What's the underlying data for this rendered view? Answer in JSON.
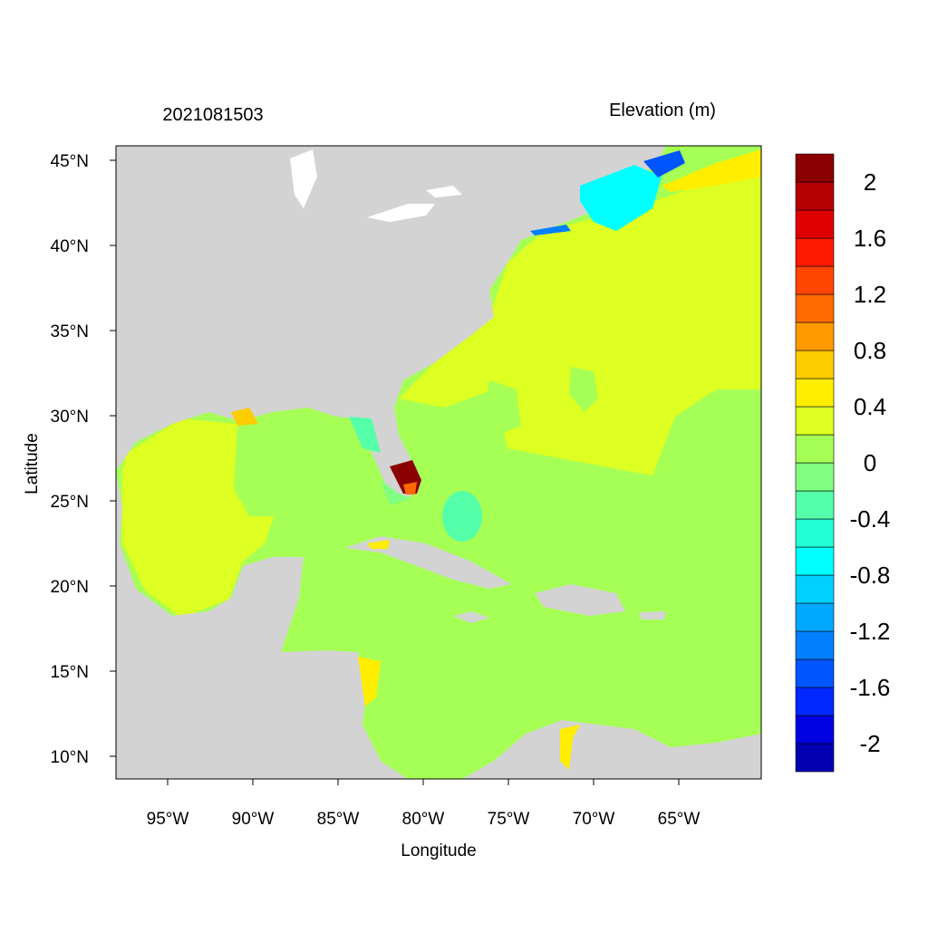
{
  "map": {
    "title": "2021081503",
    "legend_title": "Elevation (m)",
    "x_label": "Longitude",
    "y_label": "Latitude",
    "xlim": [
      -98.03,
      -60.16
    ],
    "ylim": [
      8.67,
      45.85
    ],
    "xticks": [
      {
        "value": -95,
        "label": "95°W"
      },
      {
        "value": -90,
        "label": "90°W"
      },
      {
        "value": -85,
        "label": "85°W"
      },
      {
        "value": -80,
        "label": "80°W"
      },
      {
        "value": -75,
        "label": "75°W"
      },
      {
        "value": -70,
        "label": "70°W"
      },
      {
        "value": -65,
        "label": "65°W"
      }
    ],
    "yticks": [
      {
        "value": 10,
        "label": "10°N"
      },
      {
        "value": 15,
        "label": "15°N"
      },
      {
        "value": 20,
        "label": "20°N"
      },
      {
        "value": 25,
        "label": "25°N"
      },
      {
        "value": 30,
        "label": "30°N"
      },
      {
        "value": 35,
        "label": "35°N"
      },
      {
        "value": 40,
        "label": "40°N"
      },
      {
        "value": 45,
        "label": "45°N"
      }
    ],
    "colorbar": {
      "range": [
        -2.2,
        2.2
      ],
      "colors": [
        "#0000b0",
        "#0000e0",
        "#0028ff",
        "#0055ff",
        "#0080ff",
        "#00a8ff",
        "#00d0ff",
        "#00ffff",
        "#22ffd5",
        "#55ffaa",
        "#80ff80",
        "#a6ff55",
        "#ddff22",
        "#ffee00",
        "#ffcc00",
        "#ff9900",
        "#ff6a00",
        "#ff4500",
        "#ff1a00",
        "#e00000",
        "#b40000",
        "#8b0000"
      ],
      "ticks": [
        2,
        1.6,
        1.2,
        0.8,
        0.4,
        0,
        -0.4,
        -0.8,
        -1.2,
        -1.6,
        -2
      ]
    }
  }
}
